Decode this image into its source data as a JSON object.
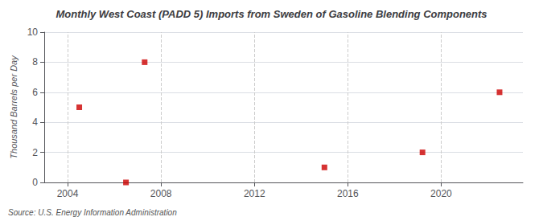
{
  "chart_data": {
    "type": "scatter",
    "title": "Monthly West Coast (PADD 5) Imports from Sweden of Gasoline Blending Components",
    "y_label": "Thousand Barrels per Day",
    "source": "Source: U.S. Energy Information Administration",
    "x": [
      2004.5,
      2006.5,
      2007.3,
      2015.0,
      2019.2,
      2022.5
    ],
    "values": [
      5.0,
      0.0,
      8.0,
      1.0,
      2.0,
      6.0
    ],
    "color": "#cc0000",
    "marker": "square",
    "xlim": [
      2003.0,
      2023.5
    ],
    "ylim": [
      0,
      10
    ],
    "xticks": [
      2004,
      2008,
      2012,
      2016,
      2020
    ],
    "yticks": [
      0,
      2,
      4,
      6,
      8,
      10
    ],
    "grid": true
  }
}
